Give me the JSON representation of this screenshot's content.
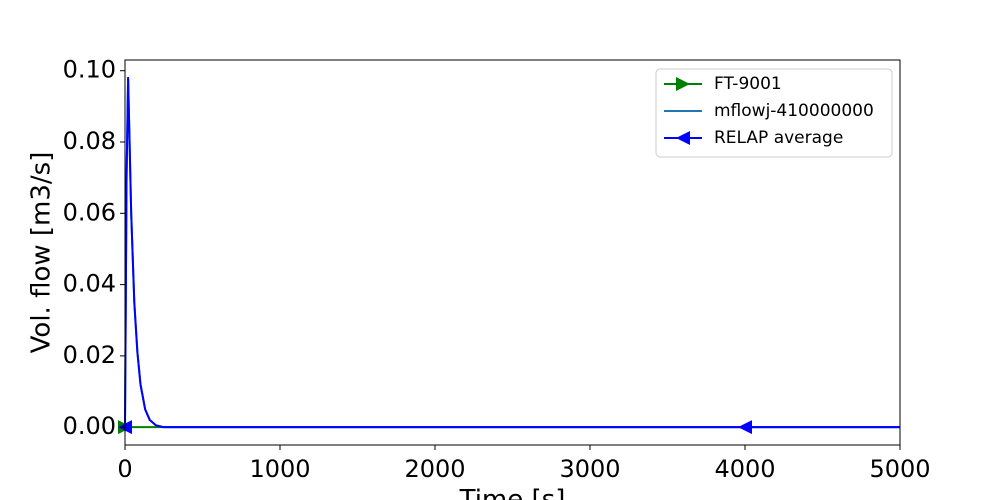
{
  "chart_data": {
    "type": "line",
    "xlabel": "Time [s]",
    "ylabel": "Vol. flow [m3/s]",
    "xlim": [
      0,
      5000
    ],
    "ylim": [
      -0.005,
      0.103
    ],
    "x_ticks": [
      0,
      1000,
      2000,
      3000,
      4000,
      5000
    ],
    "x_tick_labels": [
      "0",
      "1000",
      "2000",
      "3000",
      "4000",
      "5000"
    ],
    "y_ticks": [
      0.0,
      0.02,
      0.04,
      0.06,
      0.08,
      0.1
    ],
    "y_tick_labels": [
      "0.00",
      "0.02",
      "0.04",
      "0.06",
      "0.08",
      "0.10"
    ],
    "grid": false,
    "legend_position": "top-right",
    "series": [
      {
        "name": "FT-9001",
        "color": "#008000",
        "marker": "triangle-right",
        "x": [
          0,
          5000
        ],
        "y": [
          0.0,
          0.0
        ],
        "marker_x": [
          0
        ]
      },
      {
        "name": "mflowj-410000000",
        "color": "#1f77b4",
        "marker": "none",
        "x": [
          0,
          10,
          20,
          40,
          60,
          80,
          100,
          130,
          160,
          200,
          250,
          300,
          500,
          1000,
          2000,
          3000,
          4000,
          5000
        ],
        "y": [
          0.0,
          0.07,
          0.098,
          0.06,
          0.035,
          0.021,
          0.012,
          0.005,
          0.002,
          0.0005,
          0.0,
          0.0,
          0.0,
          0.0,
          0.0,
          0.0,
          0.0,
          0.0
        ]
      },
      {
        "name": "RELAP average",
        "color": "#0000ff",
        "marker": "triangle-left",
        "x": [
          0,
          10,
          20,
          40,
          60,
          80,
          100,
          130,
          160,
          200,
          250,
          300,
          500,
          1000,
          2000,
          3000,
          4000,
          5000
        ],
        "y": [
          0.0,
          0.07,
          0.098,
          0.06,
          0.035,
          0.021,
          0.012,
          0.005,
          0.002,
          0.0005,
          0.0,
          0.0,
          0.0,
          0.0,
          0.0,
          0.0,
          0.0,
          0.0
        ],
        "marker_x": [
          0,
          4000
        ]
      }
    ]
  }
}
